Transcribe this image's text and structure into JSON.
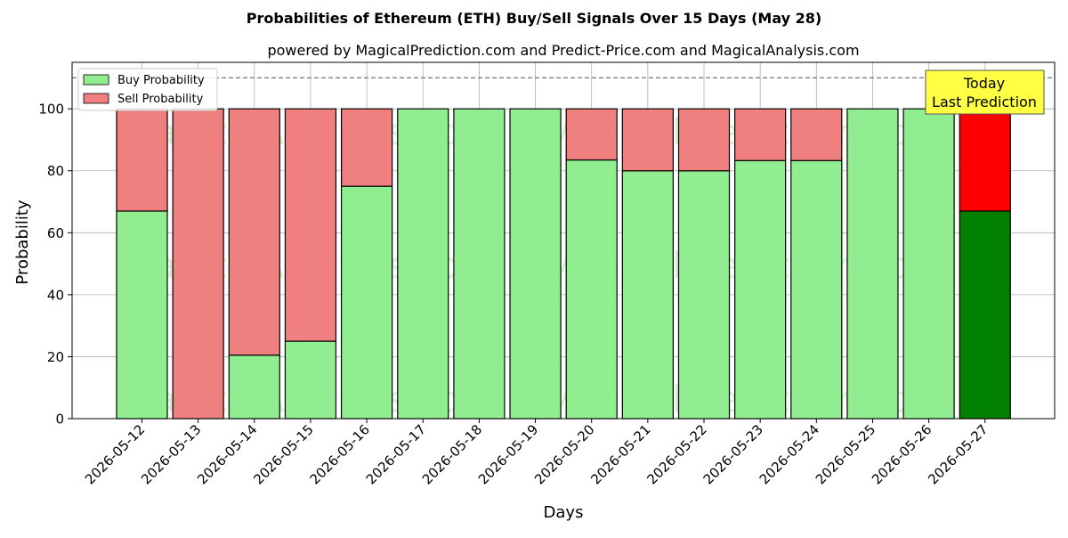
{
  "chart_data": {
    "type": "bar",
    "stacked": true,
    "title": "Probabilities of Ethereum (ETH) Buy/Sell Signals Over 15 Days (May 28)",
    "subtitle": "powered by MagicalPrediction.com and Predict-Price.com and MagicalAnalysis.com",
    "xlabel": "Days",
    "ylabel": "Probability",
    "ylim": [
      0,
      115
    ],
    "yticks": [
      0,
      20,
      40,
      60,
      80,
      100
    ],
    "grid": true,
    "legend_position": "top-left",
    "reference_line": 110,
    "categories": [
      "2026-05-12",
      "2026-05-13",
      "2026-05-14",
      "2026-05-15",
      "2026-05-16",
      "2026-05-17",
      "2026-05-18",
      "2026-05-19",
      "2026-05-20",
      "2026-05-21",
      "2026-05-22",
      "2026-05-23",
      "2026-05-24",
      "2026-05-25",
      "2026-05-26",
      "2026-05-27"
    ],
    "series": [
      {
        "name": "Buy Probability",
        "color": "#90ee90",
        "highlight_color": "#008000",
        "values": [
          67,
          0,
          20.5,
          25,
          75,
          100,
          100,
          100,
          83.5,
          80,
          80,
          83.3,
          83.3,
          100,
          100,
          67
        ]
      },
      {
        "name": "Sell Probability",
        "color": "#f08080",
        "highlight_color": "#ff0000",
        "values": [
          33,
          100,
          79.5,
          75,
          25,
          0,
          0,
          0,
          16.5,
          20,
          20,
          16.7,
          16.7,
          0,
          0,
          33
        ]
      }
    ],
    "highlight_index": 15,
    "annotation": {
      "line1": "Today",
      "line2": "Last Prediction",
      "background": "#ffff44"
    },
    "watermarks": [
      "MagicalAnalysis.com",
      "MagicalPrediction.com"
    ]
  }
}
